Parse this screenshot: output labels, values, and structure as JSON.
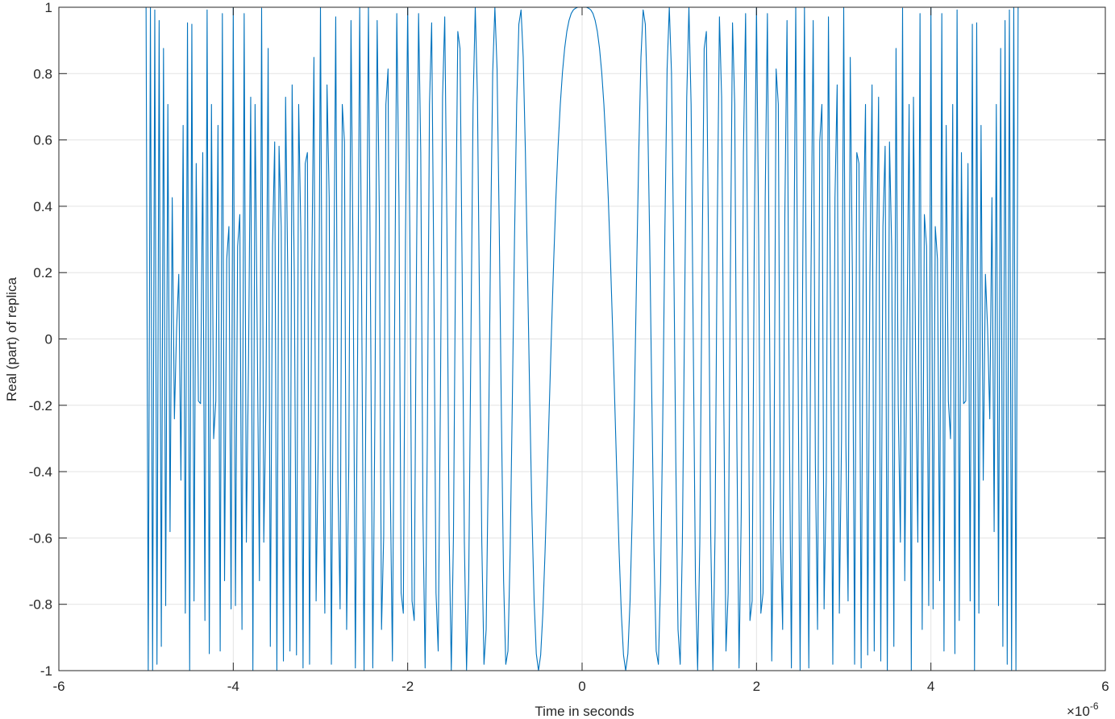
{
  "chart_data": {
    "type": "line",
    "x_label": "Time in seconds",
    "y_label": "Real (part) of replica",
    "x_multiplier": "×10",
    "x_exponent": "-6",
    "color": "#0072bd",
    "grid": true,
    "xlim": [
      -6,
      6
    ],
    "ylim": [
      -1,
      1
    ],
    "xticks": [
      -6,
      -4,
      -2,
      0,
      2,
      4,
      6
    ],
    "yticks": [
      -1,
      -0.8,
      -0.6,
      -0.4,
      -0.2,
      0,
      0.2,
      0.4,
      0.6,
      0.8,
      1
    ],
    "x": [
      -5,
      -4.975,
      -4.95,
      -4.925,
      -4.9,
      -4.875,
      -4.85,
      -4.825,
      -4.8,
      -4.775,
      -4.75,
      -4.725,
      -4.7,
      -4.675,
      -4.65,
      -4.625,
      -4.6,
      -4.575,
      -4.55,
      -4.525,
      -4.5,
      -4.475,
      -4.45,
      -4.425,
      -4.4,
      -4.375,
      -4.35,
      -4.325,
      -4.3,
      -4.275,
      -4.25,
      -4.225,
      -4.2,
      -4.175,
      -4.15,
      -4.125,
      -4.1,
      -4.075,
      -4.05,
      -4.025,
      -4,
      -3.975,
      -3.95,
      -3.925,
      -3.9,
      -3.875,
      -3.85,
      -3.825,
      -3.8,
      -3.775,
      -3.75,
      -3.725,
      -3.7,
      -3.675,
      -3.65,
      -3.625,
      -3.6,
      -3.575,
      -3.55,
      -3.525,
      -3.5,
      -3.475,
      -3.45,
      -3.425,
      -3.4,
      -3.375,
      -3.35,
      -3.325,
      -3.3,
      -3.275,
      -3.25,
      -3.225,
      -3.2,
      -3.175,
      -3.15,
      -3.125,
      -3.1,
      -3.075,
      -3.05,
      -3.025,
      -3,
      -2.975,
      -2.95,
      -2.925,
      -2.9,
      -2.875,
      -2.85,
      -2.825,
      -2.8,
      -2.775,
      -2.75,
      -2.725,
      -2.7,
      -2.675,
      -2.65,
      -2.625,
      -2.6,
      -2.575,
      -2.55,
      -2.525,
      -2.5,
      -2.475,
      -2.45,
      -2.425,
      -2.4,
      -2.375,
      -2.35,
      -2.325,
      -2.3,
      -2.275,
      -2.25,
      -2.225,
      -2.2,
      -2.175,
      -2.15,
      -2.125,
      -2.1,
      -2.075,
      -2.05,
      -2.025,
      -2,
      -1.975,
      -1.95,
      -1.925,
      -1.9,
      -1.875,
      -1.85,
      -1.825,
      -1.8,
      -1.775,
      -1.75,
      -1.725,
      -1.7,
      -1.675,
      -1.65,
      -1.625,
      -1.6,
      -1.575,
      -1.55,
      -1.525,
      -1.5,
      -1.475,
      -1.45,
      -1.425,
      -1.4,
      -1.375,
      -1.35,
      -1.325,
      -1.3,
      -1.275,
      -1.25,
      -1.225,
      -1.2,
      -1.175,
      -1.15,
      -1.125,
      -1.1,
      -1.075,
      -1.05,
      -1.025,
      -1,
      -0.975,
      -0.95,
      -0.925,
      -0.9,
      -0.875,
      -0.85,
      -0.825,
      -0.8,
      -0.775,
      -0.75,
      -0.725,
      -0.7,
      -0.675,
      -0.65,
      -0.625,
      -0.6,
      -0.575,
      -0.55,
      -0.525,
      -0.5,
      -0.475,
      -0.45,
      -0.425,
      -0.4,
      -0.375,
      -0.35,
      -0.325,
      -0.3,
      -0.275,
      -0.25,
      -0.225,
      -0.2,
      -0.175,
      -0.15,
      -0.125,
      -0.1,
      -0.075,
      -0.05,
      -0.025,
      0,
      0.025,
      0.05,
      0.075,
      0.1,
      0.125,
      0.15,
      0.175,
      0.2,
      0.225,
      0.25,
      0.275,
      0.3,
      0.325,
      0.35,
      0.375,
      0.4,
      0.425,
      0.45,
      0.475,
      0.5,
      0.525,
      0.55,
      0.575,
      0.6,
      0.625,
      0.65,
      0.675,
      0.7,
      0.725,
      0.75,
      0.775,
      0.8,
      0.825,
      0.85,
      0.875,
      0.9,
      0.925,
      0.95,
      0.975,
      1,
      1.025,
      1.05,
      1.075,
      1.1,
      1.125,
      1.15,
      1.175,
      1.2,
      1.225,
      1.25,
      1.275,
      1.3,
      1.325,
      1.35,
      1.375,
      1.4,
      1.425,
      1.45,
      1.475,
      1.5,
      1.525,
      1.55,
      1.575,
      1.6,
      1.625,
      1.65,
      1.675,
      1.7,
      1.725,
      1.75,
      1.775,
      1.8,
      1.825,
      1.85,
      1.875,
      1.9,
      1.925,
      1.95,
      1.975,
      2,
      2.025,
      2.05,
      2.075,
      2.1,
      2.125,
      2.15,
      2.175,
      2.2,
      2.225,
      2.25,
      2.275,
      2.3,
      2.325,
      2.35,
      2.375,
      2.4,
      2.425,
      2.45,
      2.475,
      2.5,
      2.525,
      2.55,
      2.575,
      2.6,
      2.625,
      2.65,
      2.675,
      2.7,
      2.725,
      2.75,
      2.775,
      2.8,
      2.825,
      2.85,
      2.875,
      2.9,
      2.925,
      2.95,
      2.975,
      3,
      3.025,
      3.05,
      3.075,
      3.1,
      3.125,
      3.15,
      3.175,
      3.2,
      3.225,
      3.25,
      3.275,
      3.3,
      3.325,
      3.35,
      3.375,
      3.4,
      3.425,
      3.45,
      3.475,
      3.5,
      3.525,
      3.55,
      3.575,
      3.6,
      3.625,
      3.65,
      3.675,
      3.7,
      3.725,
      3.75,
      3.775,
      3.8,
      3.825,
      3.85,
      3.875,
      3.9,
      3.925,
      3.95,
      3.975,
      4,
      4.025,
      4.05,
      4.075,
      4.1,
      4.125,
      4.15,
      4.175,
      4.2,
      4.225,
      4.25,
      4.275,
      4.3,
      4.325,
      4.35,
      4.375,
      4.4,
      4.425,
      4.45,
      4.475,
      4.5,
      4.525,
      4.55,
      4.575,
      4.6,
      4.625,
      4.65,
      4.675,
      4.7,
      4.725,
      4.75,
      4.775,
      4.8,
      4.825,
      4.85,
      4.875,
      4.9,
      4.925,
      4.95,
      4.975,
      5
    ],
    "values": [
      1,
      -1,
      1,
      -0.998,
      0.992,
      -0.981,
      0.96,
      -0.927,
      0.876,
      -0.804,
      0.707,
      -0.581,
      0.426,
      -0.241,
      0.031,
      0.195,
      -0.426,
      0.644,
      -0.827,
      0.953,
      -1,
      0.949,
      -0.79,
      0.529,
      -0.187,
      -0.195,
      0.562,
      -0.849,
      0.992,
      -0.949,
      0.707,
      -0.301,
      -0.187,
      0.644,
      -0.941,
      0.981,
      -0.729,
      0.241,
      0.339,
      -0.814,
      1,
      -0.804,
      0.279,
      0.375,
      -0.876,
      0.981,
      -0.613,
      -0.071,
      0.729,
      -1,
      0.707,
      0.008,
      -0.729,
      0.997,
      -0.613,
      -0.195,
      0.876,
      -0.927,
      0.279,
      0.594,
      -1,
      0.581,
      0.339,
      -0.971,
      0.729,
      0.195,
      -0.941,
      0.766,
      0.187,
      -0.953,
      0.707,
      0.317,
      -0.992,
      0.529,
      0.562,
      -0.981,
      0.187,
      0.849,
      -0.79,
      -0.317,
      1,
      -0.301,
      -0.827,
      0.766,
      0.426,
      -0.981,
      0.031,
      0.971,
      -0.426,
      -0.814,
      0.707,
      0.594,
      -0.876,
      -0.375,
      0.96,
      0.195,
      -0.992,
      -0.071,
      1,
      0.008,
      -1,
      -0.008,
      1,
      0.071,
      -0.992,
      -0.195,
      0.96,
      0.375,
      -0.876,
      -0.594,
      0.707,
      0.814,
      -0.426,
      -0.971,
      0.031,
      0.981,
      0.426,
      -0.766,
      -0.827,
      0.301,
      1,
      0.317,
      -0.79,
      -0.849,
      0.187,
      0.981,
      0.562,
      -0.529,
      -0.992,
      -0.317,
      0.707,
      0.953,
      0.187,
      -0.766,
      -0.941,
      -0.195,
      0.729,
      0.971,
      0.339,
      -0.581,
      -1,
      -0.594,
      0.279,
      0.927,
      0.876,
      0.195,
      -0.613,
      -0.998,
      -0.729,
      -0.008,
      0.707,
      1,
      0.729,
      0.071,
      -0.613,
      -0.981,
      -0.876,
      -0.375,
      0.279,
      0.804,
      1,
      0.814,
      0.339,
      -0.241,
      -0.729,
      -0.981,
      -0.941,
      -0.644,
      -0.187,
      0.301,
      0.707,
      0.949,
      0.992,
      0.849,
      0.562,
      0.195,
      -0.187,
      -0.529,
      -0.79,
      -0.949,
      -1,
      -0.953,
      -0.827,
      -0.644,
      -0.426,
      -0.195,
      0.031,
      0.241,
      0.426,
      0.581,
      0.707,
      0.804,
      0.876,
      0.927,
      0.96,
      0.981,
      0.992,
      0.997,
      1,
      1,
      1,
      1,
      1,
      0.997,
      0.992,
      0.981,
      0.96,
      0.927,
      0.876,
      0.804,
      0.707,
      0.581,
      0.426,
      0.241,
      0.031,
      -0.195,
      -0.426,
      -0.644,
      -0.827,
      -0.953,
      -1,
      -0.949,
      -0.79,
      -0.529,
      -0.187,
      0.195,
      0.562,
      0.849,
      0.992,
      0.949,
      0.707,
      0.301,
      -0.187,
      -0.644,
      -0.941,
      -0.981,
      -0.729,
      -0.241,
      0.339,
      0.814,
      1,
      0.804,
      0.279,
      -0.375,
      -0.876,
      -0.981,
      -0.613,
      0.071,
      0.729,
      1,
      0.707,
      -0.008,
      -0.729,
      -0.998,
      -0.613,
      0.195,
      0.876,
      0.927,
      0.279,
      -0.594,
      -1,
      -0.581,
      0.339,
      0.971,
      0.729,
      -0.195,
      -0.941,
      -0.766,
      0.187,
      0.953,
      0.707,
      -0.317,
      -0.992,
      -0.529,
      0.562,
      0.981,
      0.187,
      -0.849,
      -0.79,
      0.317,
      1,
      0.301,
      -0.827,
      -0.766,
      0.426,
      0.981,
      0.031,
      -0.971,
      -0.426,
      0.814,
      0.707,
      -0.594,
      -0.876,
      0.375,
      0.96,
      -0.195,
      -0.992,
      0.071,
      1,
      -0.008,
      -1,
      0.008,
      1,
      -0.071,
      -0.992,
      0.195,
      0.96,
      -0.375,
      -0.876,
      0.594,
      0.707,
      -0.814,
      -0.426,
      0.971,
      0.031,
      -0.981,
      0.426,
      0.766,
      -0.827,
      -0.301,
      1,
      -0.317,
      -0.79,
      0.849,
      0.187,
      -0.981,
      0.562,
      0.529,
      -0.992,
      0.317,
      0.707,
      -0.953,
      0.187,
      0.766,
      -0.941,
      0.195,
      0.729,
      -0.971,
      0.339,
      0.581,
      -1,
      0.594,
      0.279,
      -0.927,
      0.876,
      -0.195,
      -0.613,
      0.997,
      -0.729,
      0.008,
      0.707,
      -1,
      0.729,
      -0.071,
      -0.613,
      0.981,
      -0.876,
      0.375,
      0.279,
      -0.804,
      1,
      -0.814,
      0.339,
      0.241,
      -0.729,
      0.981,
      -0.941,
      0.644,
      -0.187,
      -0.301,
      0.707,
      -0.949,
      0.992,
      -0.849,
      0.562,
      -0.195,
      -0.187,
      0.529,
      -0.79,
      0.949,
      -1,
      0.953,
      -0.827,
      0.644,
      -0.426,
      0.195,
      0.031,
      -0.241,
      0.426,
      -0.581,
      0.707,
      -0.804,
      0.876,
      -0.927,
      0.96,
      -0.981,
      0.992,
      -0.998,
      1,
      -1,
      1
    ]
  }
}
